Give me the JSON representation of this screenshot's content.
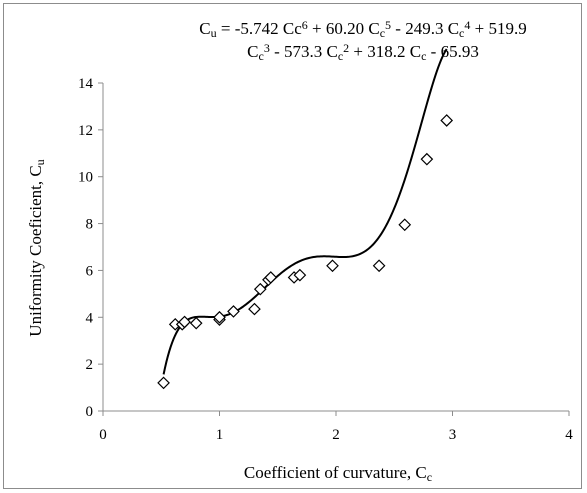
{
  "chart_data": {
    "type": "scatter",
    "equation": {
      "line1": [
        {
          "t": "C",
          "s": "n"
        },
        {
          "t": "u",
          "s": "sub"
        },
        {
          "t": " = -5.742 Cc",
          "s": "n"
        },
        {
          "t": "6",
          "s": "sup"
        },
        {
          "t": " + 60.20 C",
          "s": "n"
        },
        {
          "t": "c",
          "s": "sub"
        },
        {
          "t": "5",
          "s": "sup"
        },
        {
          "t": " - 249.3 C",
          "s": "n"
        },
        {
          "t": "c",
          "s": "sub"
        },
        {
          "t": "4",
          "s": "sup"
        },
        {
          "t": " + 519.9",
          "s": "n"
        }
      ],
      "line2": [
        {
          "t": "C",
          "s": "n"
        },
        {
          "t": "c",
          "s": "sub"
        },
        {
          "t": "3",
          "s": "sup"
        },
        {
          "t": " - 573.3 C",
          "s": "n"
        },
        {
          "t": "c",
          "s": "sub"
        },
        {
          "t": "2",
          "s": "sup"
        },
        {
          "t": " + 318.2 C",
          "s": "n"
        },
        {
          "t": "c",
          "s": "sub"
        },
        {
          "t": " - 65.93",
          "s": "n"
        }
      ]
    },
    "xlabel": {
      "main": "Coefficient of curvature, C",
      "sub": "c"
    },
    "ylabel": {
      "main": "Uniformity Coeficient, C",
      "sub": "u"
    },
    "xlim": [
      0,
      4
    ],
    "ylim": [
      0,
      14
    ],
    "xticks": [
      0,
      1,
      2,
      3,
      4
    ],
    "yticks": [
      0,
      2,
      4,
      6,
      8,
      10,
      12,
      14
    ],
    "grid": false,
    "marker": "open-diamond",
    "points": [
      {
        "x": 0.52,
        "y": 1.2
      },
      {
        "x": 0.62,
        "y": 3.7
      },
      {
        "x": 0.68,
        "y": 3.7
      },
      {
        "x": 0.7,
        "y": 3.8
      },
      {
        "x": 0.8,
        "y": 3.75
      },
      {
        "x": 1.0,
        "y": 3.9
      },
      {
        "x": 1.0,
        "y": 4.0
      },
      {
        "x": 1.12,
        "y": 4.25
      },
      {
        "x": 1.3,
        "y": 4.35
      },
      {
        "x": 1.35,
        "y": 5.2
      },
      {
        "x": 1.42,
        "y": 5.6
      },
      {
        "x": 1.44,
        "y": 5.7
      },
      {
        "x": 1.64,
        "y": 5.7
      },
      {
        "x": 1.69,
        "y": 5.8
      },
      {
        "x": 1.97,
        "y": 6.2
      },
      {
        "x": 2.37,
        "y": 6.2
      },
      {
        "x": 2.59,
        "y": 7.95
      },
      {
        "x": 2.78,
        "y": 10.75
      },
      {
        "x": 2.95,
        "y": 12.4
      }
    ],
    "fit_poly_desc": [
      -5.742,
      60.2,
      -249.3,
      519.9,
      -573.3,
      318.2,
      -65.93
    ],
    "fit_range": [
      0.52,
      2.95
    ]
  }
}
